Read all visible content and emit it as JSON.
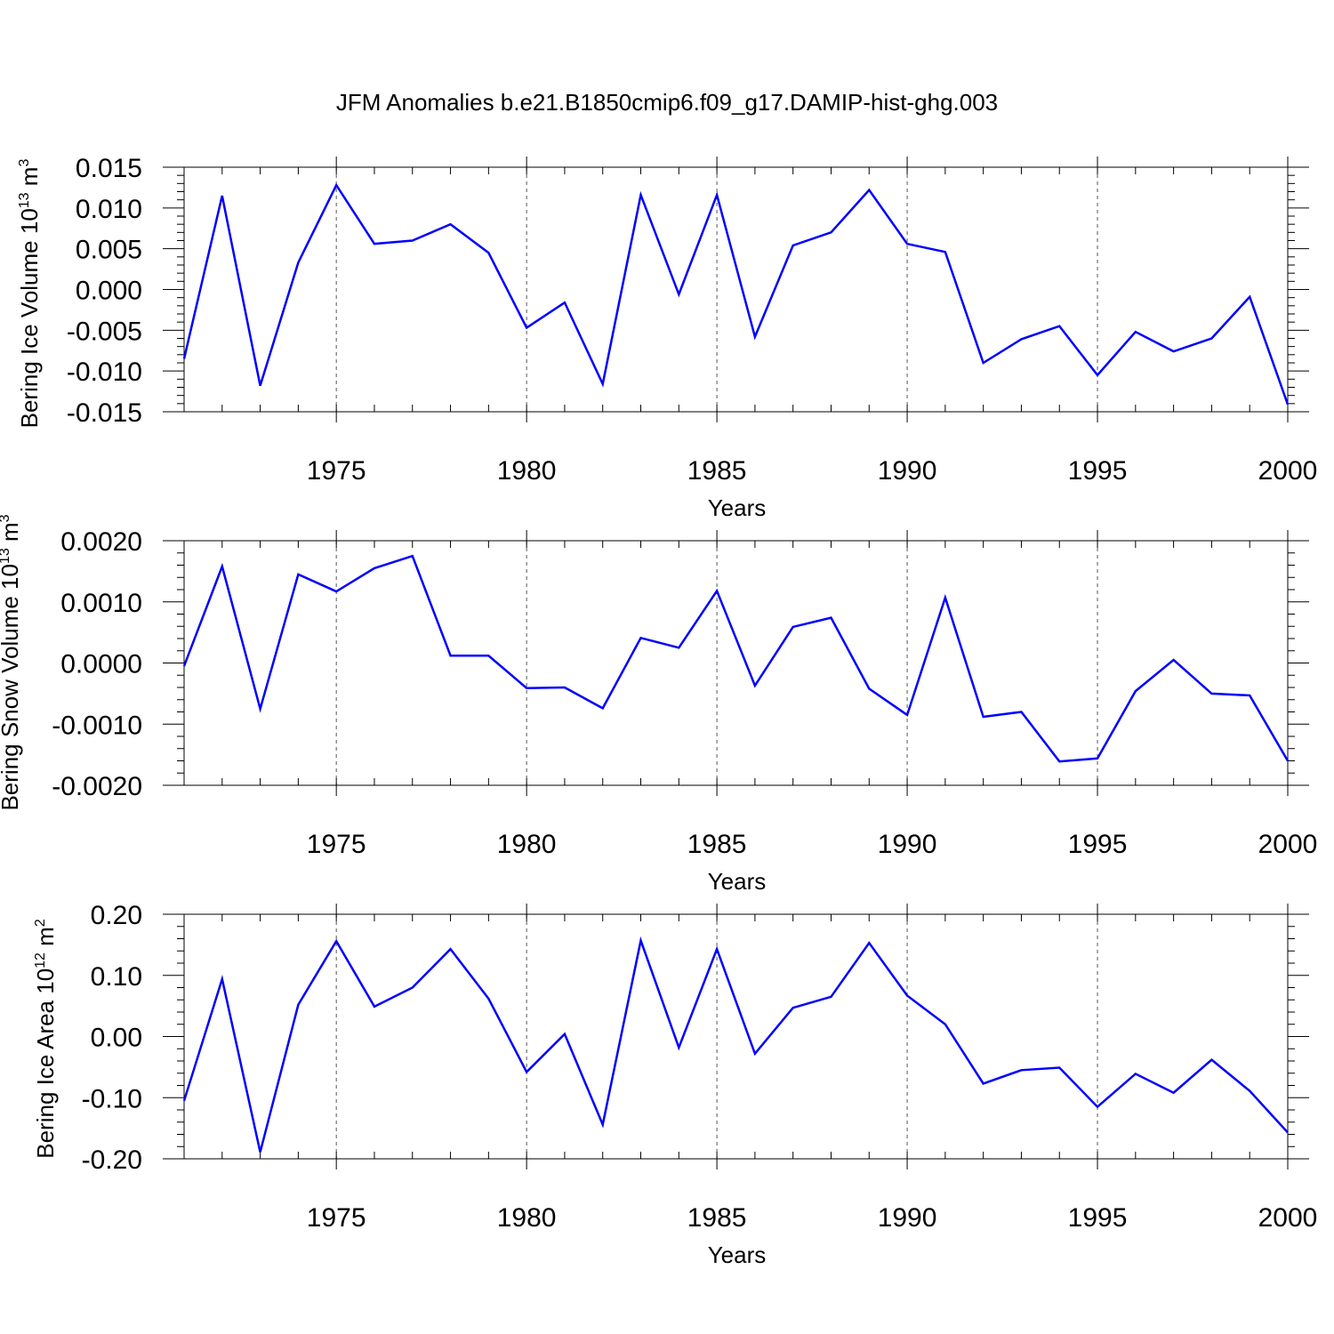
{
  "chart_data": [
    {
      "type": "line",
      "title": "JFM Anomalies b.e21.B1850cmip6.f09_g17.DAMIP-hist-ghg.003",
      "xlabel": "Years",
      "ylabel": {
        "text": "Bering Ice Volume 10",
        "exp": "13",
        "unit": "m",
        "unit_exp": "3"
      },
      "x": [
        1971,
        1972,
        1973,
        1974,
        1975,
        1976,
        1977,
        1978,
        1979,
        1980,
        1981,
        1982,
        1983,
        1984,
        1985,
        1986,
        1987,
        1988,
        1989,
        1990,
        1991,
        1992,
        1993,
        1994,
        1995,
        1996,
        1997,
        1998,
        1999,
        2000
      ],
      "series": [
        {
          "name": "Bering Ice Volume",
          "color": "#0000ff",
          "values": [
            -0.0085,
            0.0115,
            -0.0118,
            0.0033,
            0.0128,
            0.0056,
            0.006,
            0.008,
            0.0045,
            -0.0047,
            -0.0016,
            -0.0116,
            0.0116,
            -0.0006,
            0.0116,
            -0.0058,
            0.0054,
            0.007,
            0.0122,
            0.0056,
            0.0046,
            -0.009,
            -0.0061,
            -0.0045,
            -0.0105,
            -0.0052,
            -0.0076,
            -0.006,
            -0.0009,
            -0.0141
          ]
        }
      ],
      "xlim": [
        1971,
        2000
      ],
      "ylim": [
        -0.015,
        0.015
      ],
      "xticks": [
        1975,
        1980,
        1985,
        1990,
        1995,
        2000
      ],
      "xtick_labels": [
        "1975",
        "1980",
        "1985",
        "1990",
        "1995",
        "2000"
      ],
      "yticks": [
        -0.015,
        -0.01,
        -0.005,
        0.0,
        0.005,
        0.01,
        0.015
      ],
      "ytick_labels": [
        "-0.015",
        "-0.010",
        "-0.005",
        "0.000",
        "0.005",
        "0.010",
        "0.015"
      ],
      "grid": "x dashed at major ticks"
    },
    {
      "type": "line",
      "xlabel": "Years",
      "ylabel": {
        "text": "Bering Snow Volume 10",
        "exp": "13",
        "unit": "m",
        "unit_exp": "3"
      },
      "x": [
        1971,
        1972,
        1973,
        1974,
        1975,
        1976,
        1977,
        1978,
        1979,
        1980,
        1981,
        1982,
        1983,
        1984,
        1985,
        1986,
        1987,
        1988,
        1989,
        1990,
        1991,
        1992,
        1993,
        1994,
        1995,
        1996,
        1997,
        1998,
        1999,
        2000
      ],
      "series": [
        {
          "name": "Bering Snow Volume",
          "color": "#0000ff",
          "values": [
            -5e-05,
            0.00158,
            -0.00075,
            0.00145,
            0.00117,
            0.00155,
            0.00175,
            0.00012,
            0.00012,
            -0.00041,
            -0.0004,
            -0.00074,
            0.00041,
            0.00025,
            0.00118,
            -0.00037,
            0.00059,
            0.00074,
            -0.00042,
            -0.00085,
            0.00107,
            -0.00088,
            -0.0008,
            -0.00161,
            -0.00156,
            -0.00046,
            5e-05,
            -0.0005,
            -0.00053,
            -0.0016
          ]
        }
      ],
      "xlim": [
        1971,
        2000
      ],
      "ylim": [
        -0.002,
        0.002
      ],
      "xticks": [
        1975,
        1980,
        1985,
        1990,
        1995,
        2000
      ],
      "xtick_labels": [
        "1975",
        "1980",
        "1985",
        "1990",
        "1995",
        "2000"
      ],
      "yticks": [
        -0.002,
        -0.001,
        0.0,
        0.001,
        0.002
      ],
      "ytick_labels": [
        "-0.0020",
        "-0.0010",
        "0.0000",
        "0.0010",
        "0.0020"
      ],
      "grid": "x dashed at major ticks"
    },
    {
      "type": "line",
      "xlabel": "Years",
      "ylabel": {
        "text": "Bering Ice Area 10",
        "exp": "12",
        "unit": "m",
        "unit_exp": "2"
      },
      "x": [
        1971,
        1972,
        1973,
        1974,
        1975,
        1976,
        1977,
        1978,
        1979,
        1980,
        1981,
        1982,
        1983,
        1984,
        1985,
        1986,
        1987,
        1988,
        1989,
        1990,
        1991,
        1992,
        1993,
        1994,
        1995,
        1996,
        1997,
        1998,
        1999,
        2000
      ],
      "series": [
        {
          "name": "Bering Ice Area",
          "color": "#0000ff",
          "values": [
            -0.105,
            0.094,
            -0.189,
            0.052,
            0.156,
            0.049,
            0.08,
            0.143,
            0.062,
            -0.058,
            0.004,
            -0.144,
            0.157,
            -0.018,
            0.143,
            -0.028,
            0.047,
            0.065,
            0.153,
            0.067,
            0.02,
            -0.077,
            -0.055,
            -0.051,
            -0.115,
            -0.061,
            -0.092,
            -0.038,
            -0.089,
            -0.157
          ]
        }
      ],
      "xlim": [
        1971,
        2000
      ],
      "ylim": [
        -0.2,
        0.2
      ],
      "xticks": [
        1975,
        1980,
        1985,
        1990,
        1995,
        2000
      ],
      "xtick_labels": [
        "1975",
        "1980",
        "1985",
        "1990",
        "1995",
        "2000"
      ],
      "yticks": [
        -0.2,
        -0.1,
        0.0,
        0.1,
        0.2
      ],
      "ytick_labels": [
        "-0.20",
        "-0.10",
        "0.00",
        "0.10",
        "0.20"
      ],
      "grid": "x dashed at major ticks"
    }
  ]
}
